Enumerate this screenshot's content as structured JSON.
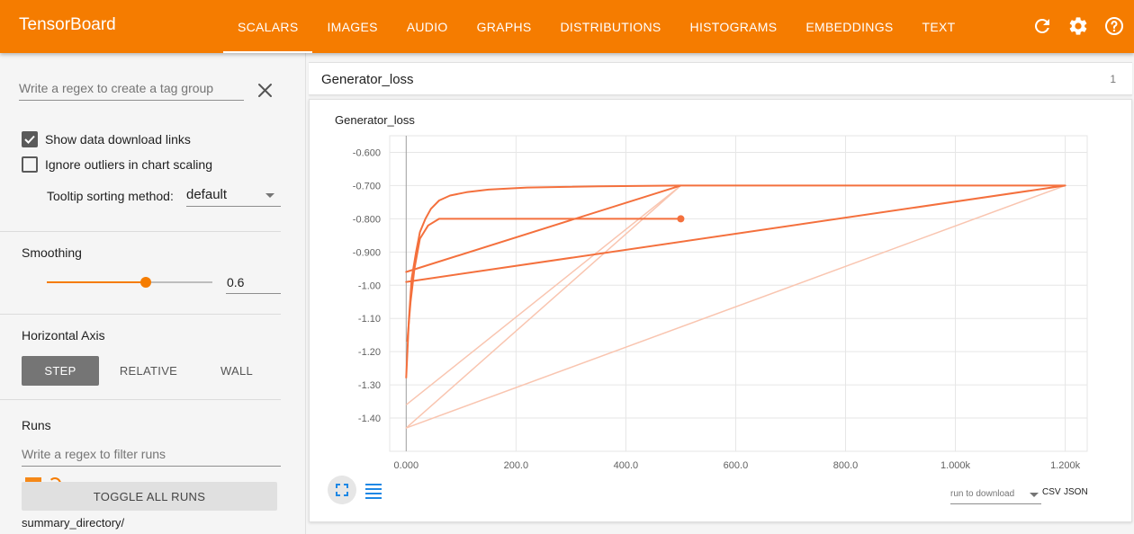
{
  "app": {
    "title": "TensorBoard",
    "tabs": [
      {
        "label": "SCALARS",
        "active": true
      },
      {
        "label": "IMAGES"
      },
      {
        "label": "AUDIO"
      },
      {
        "label": "GRAPHS"
      },
      {
        "label": "DISTRIBUTIONS"
      },
      {
        "label": "HISTOGRAMS"
      },
      {
        "label": "EMBEDDINGS"
      },
      {
        "label": "TEXT"
      }
    ],
    "icons": [
      "refresh-icon",
      "settings-icon",
      "help-icon"
    ],
    "accent_color": "#f57c00"
  },
  "sidebar": {
    "tag_regex_placeholder": "Write a regex to create a tag group",
    "show_download_links": {
      "label": "Show data download links",
      "checked": true
    },
    "ignore_outliers": {
      "label": "Ignore outliers in chart scaling",
      "checked": false
    },
    "tooltip_sorting": {
      "label": "Tooltip sorting method:",
      "value": "default"
    },
    "smoothing": {
      "title": "Smoothing",
      "value": "0.6",
      "fraction": 0.6
    },
    "horizontal_axis": {
      "title": "Horizontal Axis",
      "options": [
        "STEP",
        "RELATIVE",
        "WALL"
      ],
      "selected": "STEP"
    },
    "runs": {
      "title": "Runs",
      "filter_placeholder": "Write a regex to filter runs",
      "toggle_all_label": "TOGGLE ALL RUNS",
      "directory": "summary_directory/"
    }
  },
  "main": {
    "group_title": "Generator_loss",
    "group_count": "1",
    "download": {
      "placeholder": "run to download",
      "csv": "CSV",
      "json": "JSON"
    }
  },
  "chart_data": {
    "type": "line",
    "title": "Generator_loss",
    "xlabel": "",
    "ylabel": "",
    "x_ticks": [
      "0.000",
      "200.0",
      "400.0",
      "600.0",
      "800.0",
      "1.000k",
      "1.200k"
    ],
    "y_ticks": [
      "-0.600",
      "-0.700",
      "-0.800",
      "-0.900",
      "-1.00",
      "-1.10",
      "-1.20",
      "-1.30",
      "-1.40"
    ],
    "xlim": [
      -30,
      1240
    ],
    "ylim": [
      -1.5,
      -0.55
    ],
    "grid": true,
    "series": [
      {
        "style": "smoothed",
        "color": "#f4703d",
        "points": [
          [
            0,
            -1.28
          ],
          [
            5,
            -1.1
          ],
          [
            10,
            -0.98
          ],
          [
            18,
            -0.9
          ],
          [
            25,
            -0.84
          ],
          [
            35,
            -0.8
          ],
          [
            45,
            -0.77
          ],
          [
            60,
            -0.745
          ],
          [
            80,
            -0.73
          ],
          [
            110,
            -0.72
          ],
          [
            150,
            -0.712
          ],
          [
            220,
            -0.706
          ],
          [
            350,
            -0.702
          ],
          [
            500,
            -0.7
          ],
          [
            0,
            -0.96
          ],
          [
            500,
            -0.7
          ],
          [
            1200,
            -0.7
          ],
          [
            0,
            -0.99
          ],
          [
            1200,
            -0.7
          ],
          [
            1200,
            -0.7
          ]
        ]
      },
      {
        "style": "smoothed",
        "color": "#f4703d",
        "points": [
          [
            2,
            -1.17
          ],
          [
            8,
            -1.05
          ],
          [
            15,
            -0.95
          ],
          [
            25,
            -0.86
          ],
          [
            40,
            -0.82
          ],
          [
            60,
            -0.8
          ],
          [
            200,
            -0.8
          ],
          [
            400,
            -0.8
          ],
          [
            500,
            -0.8
          ]
        ],
        "end_marker": [
          500,
          -0.8
        ]
      },
      {
        "style": "raw",
        "color": "#f9c5b0",
        "points": [
          [
            0,
            -1.36
          ],
          [
            500,
            -0.7
          ],
          [
            0,
            -1.43
          ],
          [
            1200,
            -0.7
          ]
        ]
      }
    ]
  }
}
